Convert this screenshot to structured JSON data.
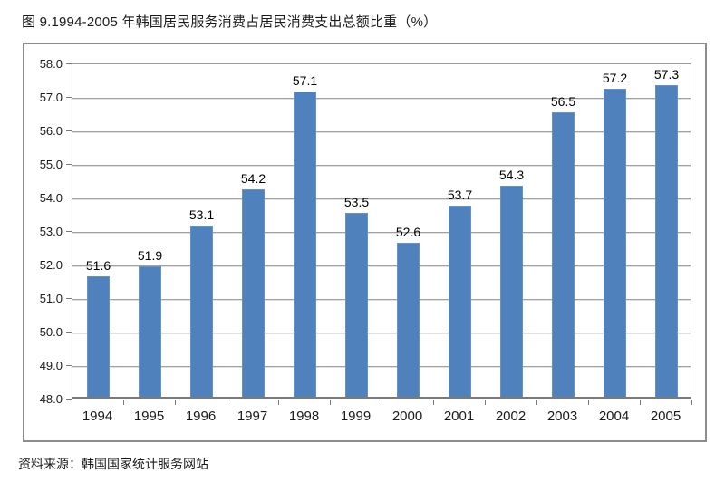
{
  "page": {
    "title": "图 9.1994-2005 年韩国居民服务消费占居民消费支出总额比重（%）",
    "source": "资料来源：韩国国家统计服务网站"
  },
  "chart_data": {
    "type": "bar",
    "title": "图 9.1994-2005 年韩国居民服务消费占居民消费支出总额比重（%）",
    "categories": [
      "1994",
      "1995",
      "1996",
      "1997",
      "1998",
      "1999",
      "2000",
      "2001",
      "2002",
      "2003",
      "2004",
      "2005"
    ],
    "values": [
      51.6,
      51.9,
      53.1,
      54.2,
      57.1,
      53.5,
      52.6,
      53.7,
      54.3,
      56.5,
      57.2,
      57.3
    ],
    "data_labels": [
      "51.6",
      "51.9",
      "53.1",
      "54.2",
      "57.1",
      "53.5",
      "52.6",
      "53.7",
      "54.3",
      "56.5",
      "57.2",
      "57.3"
    ],
    "xlabel": "",
    "ylabel": "",
    "ylim": [
      48.0,
      58.0
    ],
    "ytick_step": 1.0,
    "ytick_labels": [
      "48.0",
      "49.0",
      "50.0",
      "51.0",
      "52.0",
      "53.0",
      "54.0",
      "55.0",
      "56.0",
      "57.0",
      "58.0"
    ],
    "grid": true,
    "legend_position": "none",
    "bar_color": "#4f81bd",
    "gridline_color": "#a0a0a0",
    "axis_color": "#7a7a7a",
    "frame_border_color": "#8c8c8c"
  }
}
